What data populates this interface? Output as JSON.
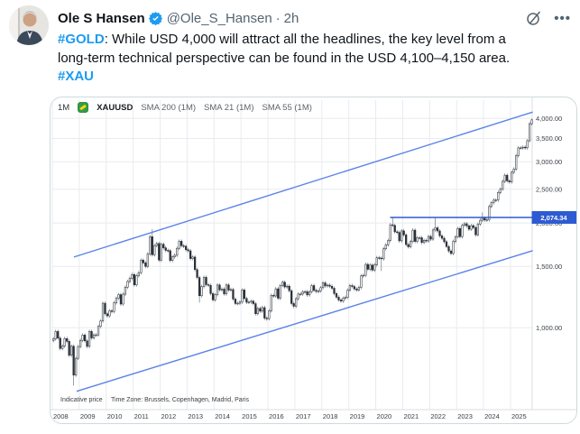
{
  "colors": {
    "link": "#1d9bf0",
    "badge": "#1d9bf0",
    "text": "#0f1419",
    "muted": "#536471",
    "grid": "#e9ebee",
    "axis_line": "#d8dce1",
    "axis_text": "#3a3f45",
    "candle_dark": "#2a3038",
    "candle_wick": "#55606e",
    "channel_line": "#5b83e8",
    "resistance_line": "#2d5bd1",
    "price_label_bg": "#2d5bd1"
  },
  "header": {
    "name": "Ole S Hansen",
    "handle": "@Ole_S_Hansen",
    "separator": "·",
    "time": "2h",
    "more_label": "•••"
  },
  "tweet": {
    "lines": [
      [
        {
          "t": "#GOLD",
          "link": true
        },
        {
          "t": ": While USD 4,000 will attract all the headlines, the key level from a",
          "link": false
        }
      ],
      [
        {
          "t": "long-term technical perspective can be found in the USD 4,100–4,150 area.",
          "link": false
        }
      ],
      [
        {
          "t": "#XAU",
          "link": true
        }
      ]
    ]
  },
  "chart": {
    "toolbar": {
      "timeframe": "1M",
      "symbol": "XAUUSD",
      "indicators": [
        "SMA 200 (1M)",
        "SMA 21 (1M)",
        "SMA 55 (1M)"
      ]
    },
    "footer": {
      "indicative": "Indicative price",
      "timezone": "Time Zone: Brussels, Copenhagen, Madrid, Paris"
    },
    "price_marker": "2,074.34"
  },
  "chart_data": {
    "type": "candlestick",
    "symbol": "XAUUSD",
    "interval": "1M",
    "scale": "log",
    "start_month": "2008-01",
    "end_month": "2025-10",
    "x_years": [
      2008,
      2009,
      2010,
      2011,
      2012,
      2013,
      2014,
      2015,
      2016,
      2017,
      2018,
      2019,
      2020,
      2021,
      2022,
      2023,
      2024,
      2025
    ],
    "y_gridlines": [
      4000,
      3500,
      3000,
      2500,
      2000,
      1500,
      1000
    ],
    "y_gridline_labels": [
      "4,000.00",
      "3,500.00",
      "3,000.00",
      "2,500.00",
      "2,000.00",
      "1,500.00",
      "1,000.00"
    ],
    "y_visible_range": [
      580,
      4600
    ],
    "monthly_close": [
      928,
      975,
      933,
      871,
      885,
      930,
      913,
      833,
      884,
      730,
      816,
      882,
      919,
      952,
      916,
      883,
      975,
      934,
      953,
      953,
      1008,
      1045,
      1175,
      1096,
      1081,
      1118,
      1113,
      1179,
      1215,
      1244,
      1169,
      1248,
      1307,
      1357,
      1386,
      1421,
      1327,
      1411,
      1439,
      1563,
      1536,
      1500,
      1628,
      1826,
      1620,
      1722,
      1746,
      1564,
      1737,
      1696,
      1668,
      1664,
      1560,
      1598,
      1615,
      1691,
      1772,
      1720,
      1714,
      1675,
      1663,
      1580,
      1596,
      1469,
      1394,
      1235,
      1312,
      1395,
      1329,
      1323,
      1253,
      1202,
      1244,
      1326,
      1284,
      1291,
      1250,
      1327,
      1282,
      1287,
      1208,
      1173,
      1175,
      1184,
      1283,
      1213,
      1183,
      1184,
      1191,
      1172,
      1096,
      1135,
      1115,
      1142,
      1065,
      1061,
      1118,
      1238,
      1233,
      1293,
      1215,
      1322,
      1351,
      1309,
      1316,
      1277,
      1173,
      1152,
      1211,
      1249,
      1249,
      1268,
      1269,
      1242,
      1269,
      1321,
      1280,
      1271,
      1275,
      1303,
      1345,
      1318,
      1325,
      1315,
      1298,
      1253,
      1224,
      1201,
      1192,
      1215,
      1222,
      1282,
      1321,
      1313,
      1292,
      1283,
      1305,
      1409,
      1414,
      1520,
      1472,
      1513,
      1464,
      1517,
      1589,
      1585,
      1577,
      1686,
      1730,
      1781,
      1976,
      1968,
      1886,
      1879,
      1777,
      1898,
      1848,
      1734,
      1708,
      1769,
      1907,
      1770,
      1814,
      1814,
      1757,
      1783,
      1775,
      1829,
      1797,
      1909,
      1937,
      1897,
      1837,
      1807,
      1766,
      1711,
      1661,
      1634,
      1769,
      1824,
      1928,
      1827,
      1969,
      1990,
      1962,
      1919,
      1965,
      1940,
      1849,
      1984,
      2036,
      2063,
      2040,
      2044,
      2230,
      2286,
      2327,
      2327,
      2448,
      2503,
      2635,
      2744,
      2643,
      2625,
      2798,
      2858,
      3124,
      3289,
      3289,
      3303,
      3290,
      3448,
      3859,
      3960
    ],
    "wick_overrides": [
      {
        "i": 9,
        "low": 681
      },
      {
        "i": 44,
        "high": 1920
      },
      {
        "i": 65,
        "low": 1180
      },
      {
        "i": 95,
        "low": 1046
      },
      {
        "i": 146,
        "low": 1455
      },
      {
        "i": 151,
        "high": 2075
      },
      {
        "i": 170,
        "high": 2070
      },
      {
        "i": 177,
        "low": 1615
      },
      {
        "i": 191,
        "high": 2146
      },
      {
        "i": 213,
        "high": 3990
      }
    ],
    "annotations": {
      "resistance": {
        "type": "hline",
        "price": 2074.34,
        "from_month_index": 150.4,
        "label": "2,074.34"
      },
      "channel_upper": {
        "type": "trendline",
        "m1": 9.6,
        "p1": 1596,
        "m2": 213.9,
        "p2": 4170
      },
      "channel_lower": {
        "type": "trendline",
        "m1": 10.8,
        "p1": 656,
        "m2": 213.9,
        "p2": 1665
      }
    }
  }
}
